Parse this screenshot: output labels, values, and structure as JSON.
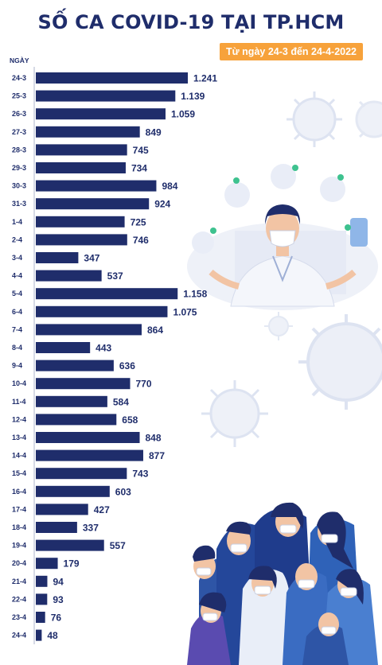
{
  "header": {
    "title": "SỐ CA COVID-19 TẠI TP.HCM",
    "subtitle": "Từ ngày 24-3 đến 24-4-2022"
  },
  "colors": {
    "bar": "#1f2d6b",
    "title": "#1f2d6b",
    "subtitle_bg": "#f7a23b",
    "virus": "#dde3f1"
  },
  "chart_data": {
    "type": "bar",
    "orientation": "horizontal",
    "title": "SỐ CA COVID-19 TẠI TP.HCM",
    "subtitle": "Từ ngày 24-3 đến 24-4-2022",
    "ylabel": "NGÀY",
    "xlabel": "",
    "grid": false,
    "legend": "none",
    "xlim": [
      0,
      1300
    ],
    "categories": [
      "24-3",
      "25-3",
      "26-3",
      "27-3",
      "28-3",
      "29-3",
      "30-3",
      "31-3",
      "1-4",
      "2-4",
      "3-4",
      "4-4",
      "5-4",
      "6-4",
      "7-4",
      "8-4",
      "9-4",
      "10-4",
      "11-4",
      "12-4",
      "13-4",
      "14-4",
      "15-4",
      "16-4",
      "17-4",
      "18-4",
      "19-4",
      "20-4",
      "21-4",
      "22-4",
      "23-4",
      "24-4"
    ],
    "values": [
      1241,
      1139,
      1059,
      849,
      745,
      734,
      984,
      924,
      725,
      746,
      347,
      537,
      1158,
      1075,
      864,
      443,
      636,
      770,
      584,
      658,
      848,
      877,
      743,
      603,
      427,
      337,
      557,
      179,
      94,
      93,
      76,
      48
    ],
    "value_labels": [
      "1.241",
      "1.139",
      "1.059",
      "849",
      "745",
      "734",
      "984",
      "924",
      "725",
      "746",
      "347",
      "537",
      "1.158",
      "1.075",
      "864",
      "443",
      "636",
      "770",
      "584",
      "658",
      "848",
      "877",
      "743",
      "603",
      "427",
      "337",
      "557",
      "179",
      "94",
      "93",
      "76",
      "48"
    ]
  }
}
